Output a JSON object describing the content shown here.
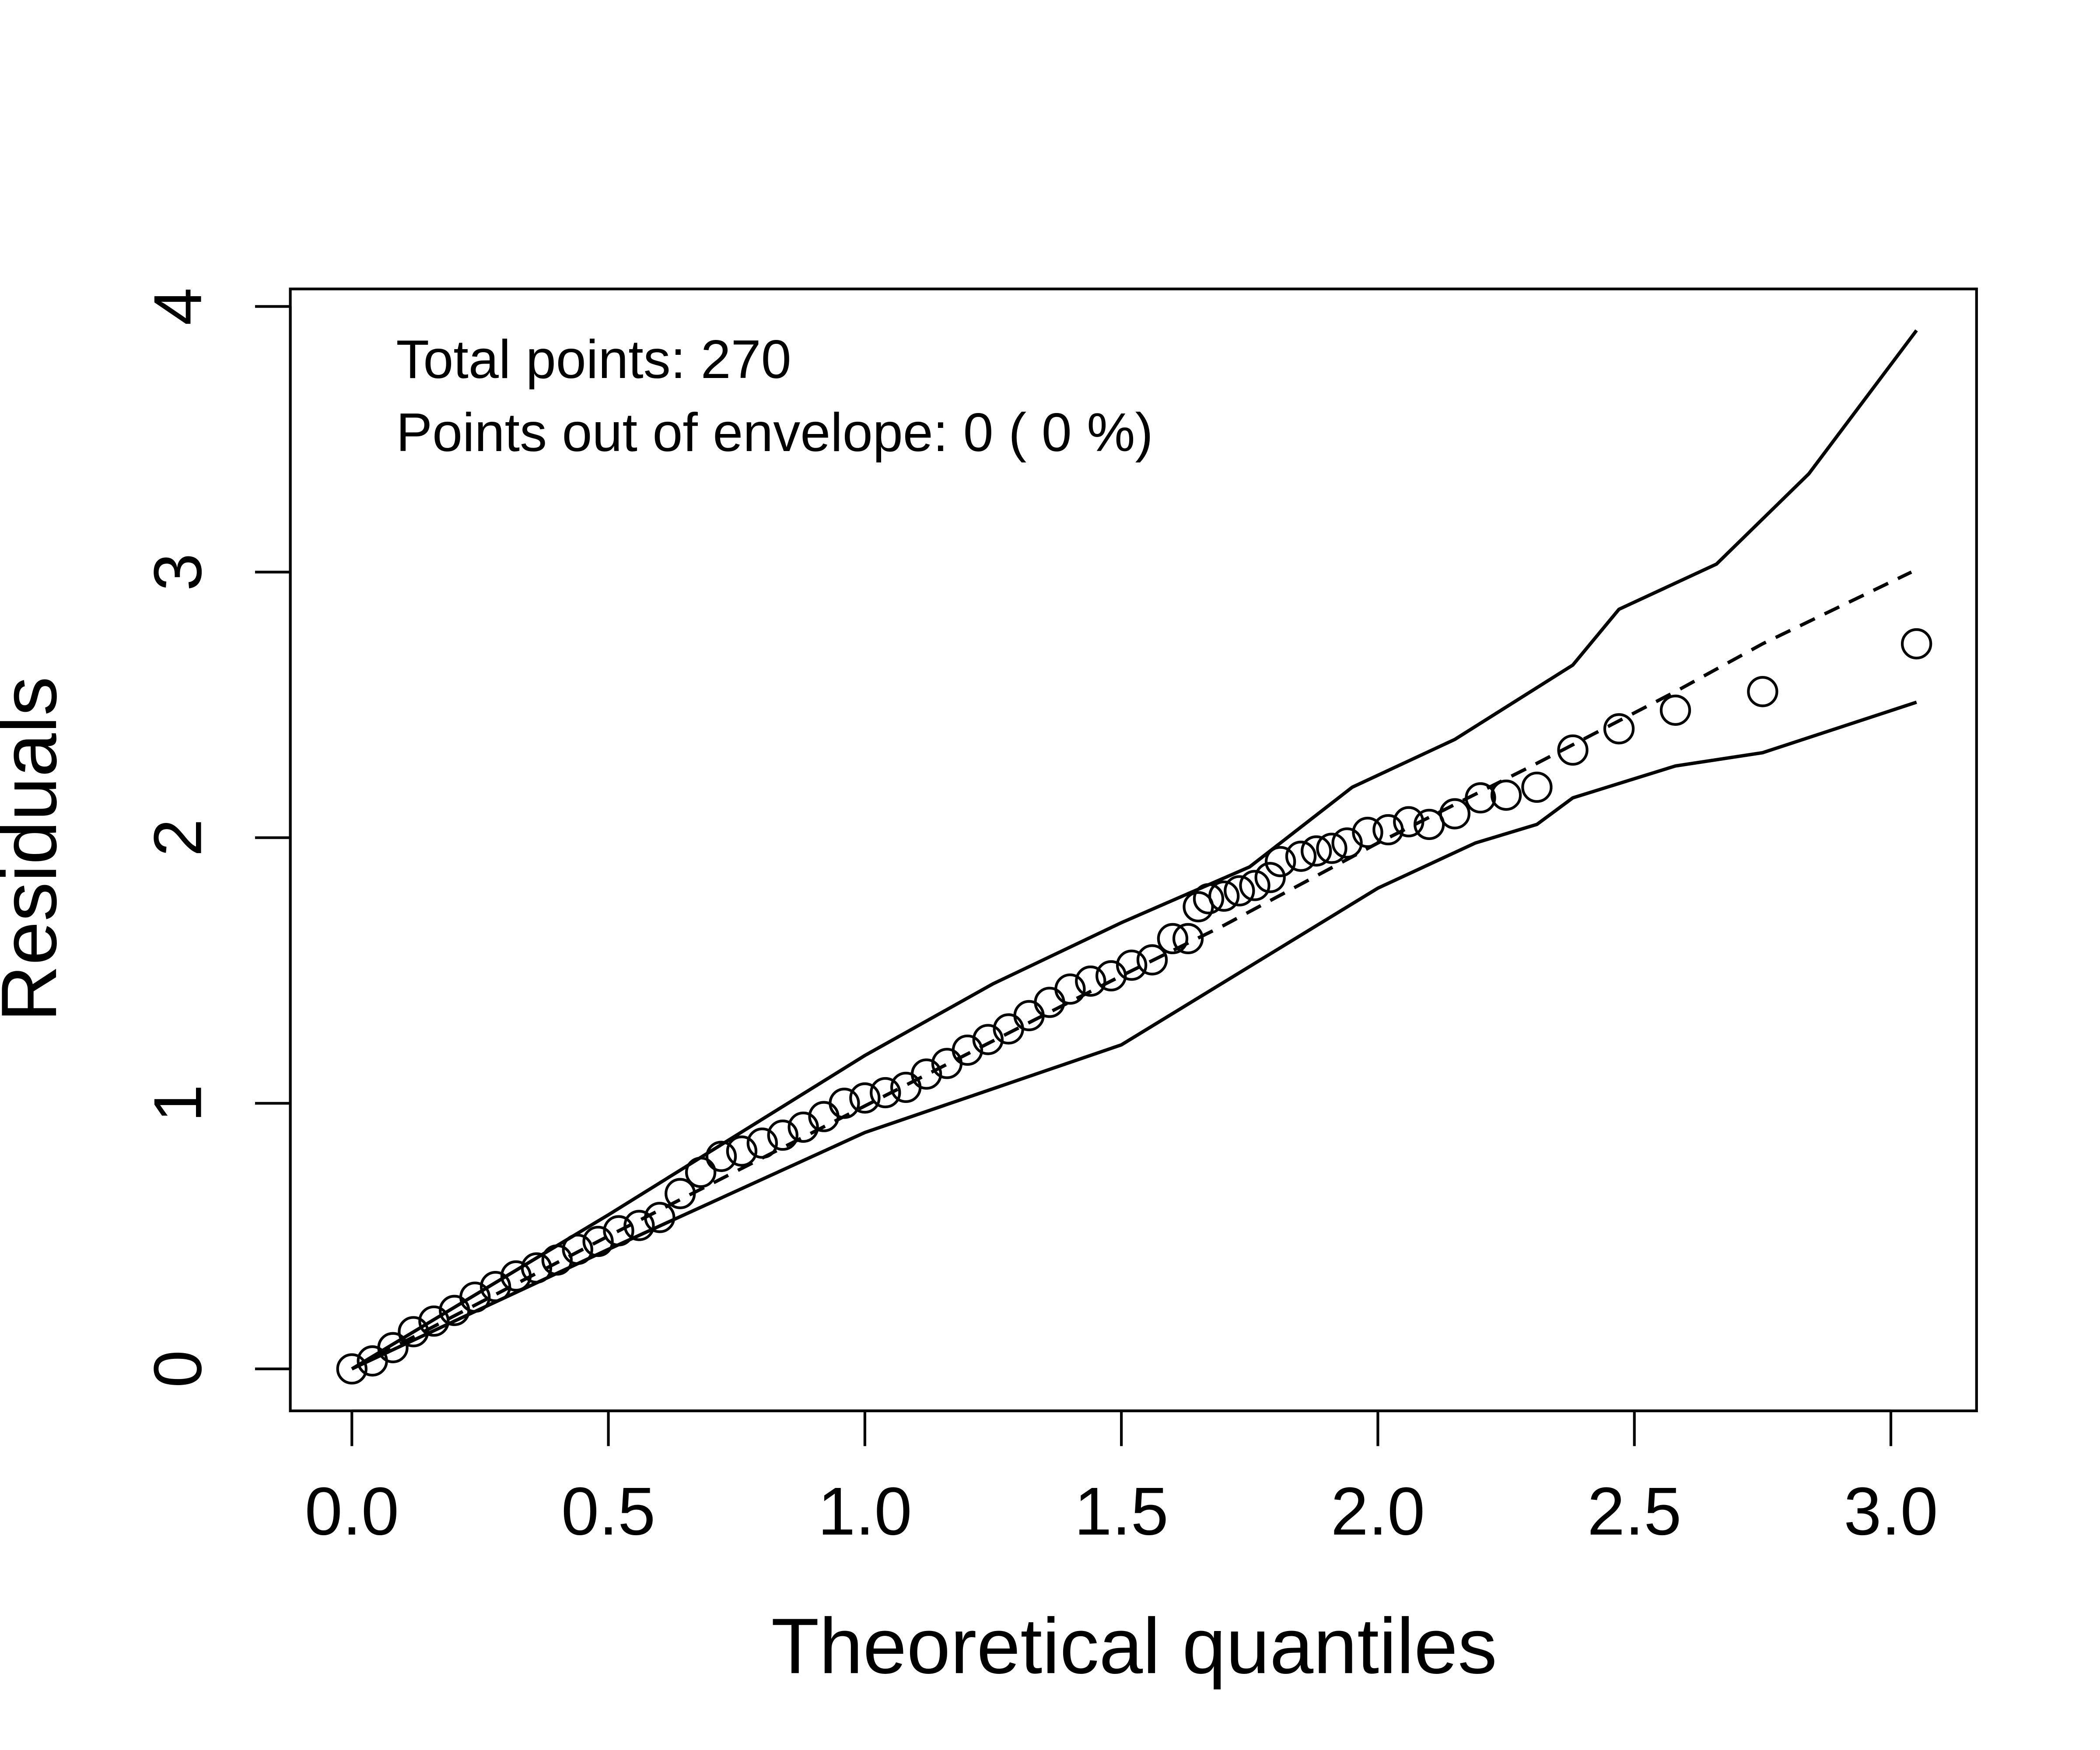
{
  "chart_data": {
    "type": "envelope",
    "xlabel": "Theoretical quantiles",
    "ylabel": "Residuals",
    "annotations": [
      "Total points: 270",
      "Points out of envelope: 0 ( 0 %)"
    ],
    "xlim": [
      -0.12,
      3.167
    ],
    "ylim": [
      -0.158,
      4.066
    ],
    "xticks": [
      {
        "value": 0,
        "label": "0.0"
      },
      0.5,
      {
        "value": 1,
        "label": "1.0"
      },
      1.5,
      {
        "value": 2,
        "label": "2.0"
      },
      2.5,
      {
        "value": 3,
        "label": "3.0"
      }
    ],
    "yticks": [
      0,
      1,
      2,
      3,
      4
    ],
    "points": {
      "name": "Residuals",
      "color": "#000000",
      "x": [
        0.0,
        0.04,
        0.08,
        0.12,
        0.16,
        0.2,
        0.24,
        0.28,
        0.32,
        0.36,
        0.4,
        0.44,
        0.48,
        0.52,
        0.56,
        0.6,
        0.64,
        0.68,
        0.72,
        0.76,
        0.8,
        0.84,
        0.88,
        0.92,
        0.96,
        1.0,
        1.04,
        1.08,
        1.12,
        1.16,
        1.2,
        1.24,
        1.28,
        1.32,
        1.36,
        1.4,
        1.44,
        1.48,
        1.52,
        1.56,
        1.6,
        1.63,
        1.65,
        1.67,
        1.7,
        1.73,
        1.76,
        1.79,
        1.81,
        1.85,
        1.88,
        1.91,
        1.94,
        1.98,
        2.02,
        2.06,
        2.1,
        2.15,
        2.2,
        2.25,
        2.31,
        2.38,
        2.47,
        2.58,
        2.75,
        3.05
      ],
      "y": [
        0.0,
        0.03,
        0.08,
        0.14,
        0.18,
        0.22,
        0.27,
        0.31,
        0.35,
        0.38,
        0.41,
        0.45,
        0.48,
        0.52,
        0.54,
        0.57,
        0.66,
        0.74,
        0.8,
        0.82,
        0.85,
        0.88,
        0.91,
        0.95,
        1.0,
        1.02,
        1.04,
        1.06,
        1.11,
        1.15,
        1.2,
        1.24,
        1.28,
        1.33,
        1.38,
        1.43,
        1.46,
        1.48,
        1.52,
        1.54,
        1.62,
        1.62,
        1.74,
        1.77,
        1.78,
        1.8,
        1.82,
        1.85,
        1.91,
        1.93,
        1.95,
        1.96,
        1.98,
        2.02,
        2.03,
        2.06,
        2.05,
        2.09,
        2.15,
        2.16,
        2.19,
        2.33,
        2.41,
        2.48,
        2.55,
        2.73
      ]
    },
    "series": [
      {
        "name": "upper",
        "color": "#000000",
        "dash": false,
        "x": [
          0.0,
          0.5,
          1.0,
          1.25,
          1.5,
          1.75,
          1.95,
          2.15,
          2.38,
          2.47,
          2.66,
          2.84,
          3.05
        ],
        "y": [
          0.0,
          0.58,
          1.18,
          1.45,
          1.68,
          1.89,
          2.19,
          2.37,
          2.65,
          2.86,
          3.03,
          3.37,
          3.91
        ]
      },
      {
        "name": "median",
        "color": "#000000",
        "dash": true,
        "x": [
          0.0,
          0.5,
          1.0,
          1.5,
          1.7,
          2.0,
          2.3,
          2.58,
          2.75,
          3.04
        ],
        "y": [
          0.0,
          0.5,
          0.99,
          1.48,
          1.67,
          1.98,
          2.27,
          2.55,
          2.73,
          3.0
        ]
      },
      {
        "name": "lower",
        "color": "#000000",
        "dash": false,
        "x": [
          0.0,
          0.5,
          1.0,
          1.5,
          2.0,
          2.19,
          2.31,
          2.38,
          2.58,
          2.75,
          3.05
        ],
        "y": [
          0.0,
          0.45,
          0.89,
          1.22,
          1.81,
          1.98,
          2.05,
          2.15,
          2.27,
          2.32,
          2.51
        ]
      }
    ]
  }
}
